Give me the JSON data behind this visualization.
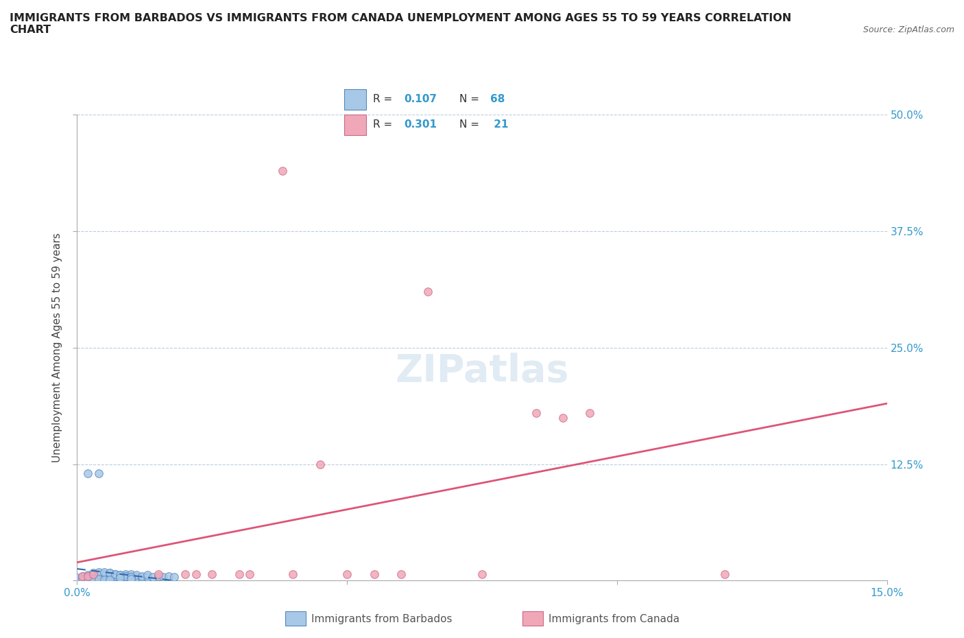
{
  "title": "IMMIGRANTS FROM BARBADOS VS IMMIGRANTS FROM CANADA UNEMPLOYMENT AMONG AGES 55 TO 59 YEARS CORRELATION\nCHART",
  "source": "Source: ZipAtlas.com",
  "ylabel": "Unemployment Among Ages 55 to 59 years",
  "xlim": [
    0.0,
    0.15
  ],
  "ylim": [
    0.0,
    0.5
  ],
  "barbados_color": "#a8c8e8",
  "barbados_edge": "#5588bb",
  "canada_color": "#f0a8b8",
  "canada_edge": "#cc6688",
  "trendline_barbados_color": "#3366aa",
  "trendline_canada_color": "#dd5577",
  "legend_R_barbados": "0.107",
  "legend_N_barbados": "68",
  "legend_R_canada": "0.301",
  "legend_N_canada": "21",
  "barbados_x": [
    0.0,
    0.001,
    0.001,
    0.002,
    0.002,
    0.002,
    0.002,
    0.003,
    0.003,
    0.003,
    0.003,
    0.003,
    0.004,
    0.004,
    0.004,
    0.004,
    0.005,
    0.005,
    0.005,
    0.005,
    0.005,
    0.006,
    0.006,
    0.006,
    0.006,
    0.007,
    0.007,
    0.007,
    0.007,
    0.008,
    0.008,
    0.008,
    0.008,
    0.009,
    0.009,
    0.009,
    0.01,
    0.01,
    0.01,
    0.011,
    0.011,
    0.012,
    0.012,
    0.013,
    0.013,
    0.014,
    0.015,
    0.016,
    0.017,
    0.018,
    0.002,
    0.003,
    0.004,
    0.004,
    0.005,
    0.006,
    0.007,
    0.008,
    0.009,
    0.01,
    0.001,
    0.002,
    0.003,
    0.004,
    0.005,
    0.006,
    0.008,
    0.01
  ],
  "barbados_y": [
    0.003,
    0.004,
    0.005,
    0.003,
    0.004,
    0.005,
    0.006,
    0.003,
    0.004,
    0.005,
    0.006,
    0.007,
    0.003,
    0.004,
    0.005,
    0.007,
    0.003,
    0.004,
    0.005,
    0.006,
    0.007,
    0.003,
    0.004,
    0.005,
    0.008,
    0.003,
    0.004,
    0.005,
    0.007,
    0.003,
    0.004,
    0.005,
    0.006,
    0.003,
    0.005,
    0.007,
    0.003,
    0.005,
    0.007,
    0.004,
    0.006,
    0.003,
    0.005,
    0.004,
    0.006,
    0.004,
    0.005,
    0.004,
    0.005,
    0.004,
    0.115,
    0.008,
    0.009,
    0.115,
    0.009,
    0.008,
    0.007,
    0.006,
    0.005,
    0.004,
    0.002,
    0.002,
    0.002,
    0.002,
    0.001,
    0.001,
    0.003,
    0.002
  ],
  "canada_x": [
    0.001,
    0.002,
    0.003,
    0.015,
    0.02,
    0.022,
    0.025,
    0.03,
    0.032,
    0.038,
    0.04,
    0.045,
    0.05,
    0.055,
    0.06,
    0.065,
    0.075,
    0.085,
    0.09,
    0.095,
    0.12
  ],
  "canada_y": [
    0.005,
    0.005,
    0.007,
    0.007,
    0.007,
    0.007,
    0.007,
    0.007,
    0.007,
    0.44,
    0.007,
    0.125,
    0.007,
    0.007,
    0.007,
    0.31,
    0.007,
    0.18,
    0.175,
    0.18,
    0.007
  ]
}
